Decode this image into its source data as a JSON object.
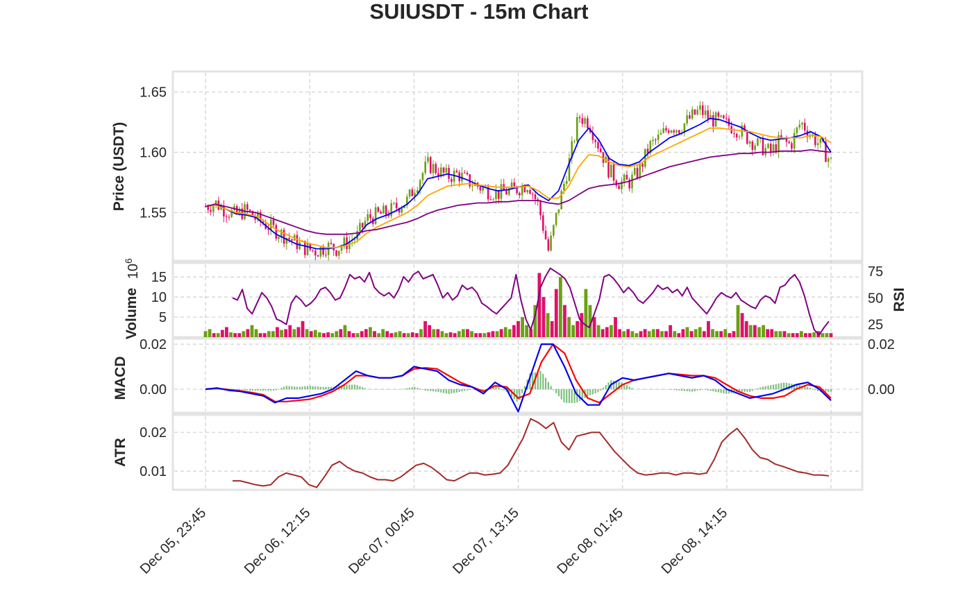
{
  "chart_data": {
    "type": "line",
    "title": "SUIUSDT - 15m Chart",
    "x_ticks": [
      "Dec 05, 23:45",
      "Dec 06, 12:15",
      "Dec 07, 00:45",
      "Dec 07, 13:15",
      "Dec 08, 01:45",
      "Dec 08, 14:15"
    ],
    "grid": true,
    "colors": {
      "up": "#6aa012",
      "down": "#e0106a",
      "ema_fast": "#0000ee",
      "ema_slow": "#ffa500",
      "sma_long": "#800080",
      "rsi": "#800080",
      "macd": "#0000ee",
      "signal": "#ff0000",
      "hist": "#7dbf7d",
      "atr": "#a52a2a"
    },
    "panels": {
      "price": {
        "ylabel": "Price (USDT)",
        "ylim": [
          1.51,
          1.667
        ],
        "yticks": [
          "1.55",
          "1.60",
          "1.65"
        ],
        "series": [
          {
            "role": "close",
            "values": [
              1.555,
              1.558,
              1.552,
              1.548,
              1.552,
              1.545,
              1.54,
              1.535,
              1.53,
              1.525,
              1.52,
              1.518,
              1.522,
              1.52,
              1.525,
              1.53,
              1.545,
              1.548,
              1.55,
              1.555,
              1.56,
              1.575,
              1.59,
              1.585,
              1.58,
              1.582,
              1.576,
              1.572,
              1.568,
              1.566,
              1.568,
              1.57,
              1.574,
              1.556,
              1.518,
              1.555,
              1.59,
              1.63,
              1.625,
              1.605,
              1.585,
              1.575,
              1.575,
              1.585,
              1.605,
              1.612,
              1.622,
              1.62,
              1.628,
              1.635,
              1.628,
              1.625,
              1.622,
              1.618,
              1.61,
              1.605,
              1.6,
              1.61,
              1.606,
              1.625,
              1.615,
              1.605,
              1.592
            ]
          },
          {
            "name": "",
            "role": "ema_fast",
            "values": [
              1.555,
              1.557,
              1.553,
              1.549,
              1.548,
              1.546,
              1.539,
              1.532,
              1.528,
              1.524,
              1.522,
              1.52,
              1.52,
              1.521,
              1.524,
              1.53,
              1.54,
              1.545,
              1.548,
              1.552,
              1.557,
              1.565,
              1.578,
              1.58,
              1.582,
              1.58,
              1.577,
              1.573,
              1.57,
              1.568,
              1.569,
              1.571,
              1.573,
              1.565,
              1.56,
              1.568,
              1.59,
              1.61,
              1.62,
              1.61,
              1.595,
              1.59,
              1.589,
              1.592,
              1.6,
              1.606,
              1.612,
              1.615,
              1.619,
              1.623,
              1.628,
              1.627,
              1.624,
              1.621,
              1.616,
              1.612,
              1.61,
              1.611,
              1.612,
              1.614,
              1.617,
              1.613,
              1.6
            ]
          },
          {
            "name": "",
            "role": "ema_slow",
            "values": [
              1.555,
              1.556,
              1.553,
              1.55,
              1.549,
              1.547,
              1.542,
              1.536,
              1.532,
              1.528,
              1.525,
              1.523,
              1.521,
              1.521,
              1.523,
              1.526,
              1.533,
              1.538,
              1.542,
              1.546,
              1.55,
              1.556,
              1.564,
              1.568,
              1.572,
              1.573,
              1.574,
              1.573,
              1.572,
              1.571,
              1.571,
              1.571,
              1.572,
              1.568,
              1.562,
              1.562,
              1.572,
              1.588,
              1.598,
              1.597,
              1.592,
              1.589,
              1.588,
              1.59,
              1.596,
              1.6,
              1.604,
              1.608,
              1.612,
              1.616,
              1.62,
              1.62,
              1.619,
              1.618,
              1.617,
              1.615,
              1.613,
              1.612,
              1.612,
              1.612,
              1.614,
              1.613,
              1.608
            ]
          },
          {
            "name": "",
            "role": "sma_long",
            "values": [
              1.555,
              1.557,
              1.555,
              1.553,
              1.551,
              1.55,
              1.547,
              1.544,
              1.541,
              1.538,
              1.535,
              1.533,
              1.532,
              1.532,
              1.532,
              1.533,
              1.535,
              1.536,
              1.538,
              1.54,
              1.542,
              1.545,
              1.549,
              1.552,
              1.554,
              1.556,
              1.557,
              1.558,
              1.558,
              1.559,
              1.559,
              1.56,
              1.56,
              1.56,
              1.558,
              1.557,
              1.56,
              1.565,
              1.57,
              1.572,
              1.573,
              1.574,
              1.576,
              1.579,
              1.582,
              1.585,
              1.588,
              1.59,
              1.592,
              1.594,
              1.596,
              1.597,
              1.598,
              1.599,
              1.599,
              1.6,
              1.6,
              1.601,
              1.601,
              1.601,
              1.602,
              1.601,
              1.6
            ]
          }
        ]
      },
      "volume": {
        "ylabel": "Volume",
        "multiplier": "10",
        "exponent": "6",
        "ylim": [
          0,
          18.5
        ],
        "yticks": [
          "5",
          "10",
          "15"
        ],
        "values": [
          1.5,
          2,
          1,
          1,
          1.8,
          2.5,
          1.2,
          1,
          1,
          1.5,
          2,
          3,
          2,
          1,
          1,
          1.5,
          1.5,
          2.5,
          1.8,
          2,
          3,
          2,
          2.5,
          4,
          2,
          1.5,
          1.8,
          1.2,
          1,
          1.2,
          1,
          1.5,
          2,
          3,
          1.5,
          1,
          1,
          1.5,
          2,
          2.5,
          1.5,
          1,
          2,
          1.5,
          1,
          1.2,
          1.5,
          1,
          1,
          1.2,
          1,
          2,
          4,
          3,
          2,
          2,
          1.5,
          1,
          1.2,
          1,
          1.5,
          2,
          2,
          1.5,
          1,
          1,
          1,
          1.2,
          1.5,
          1.5,
          2,
          2.5,
          2,
          3,
          4,
          5,
          3,
          2,
          8,
          16,
          10,
          6,
          4,
          12,
          15,
          8,
          5,
          3,
          4,
          6,
          12,
          8,
          5,
          3,
          2,
          2.5,
          3,
          5,
          2,
          1.5,
          2,
          1.5,
          1,
          1.5,
          2,
          1.5,
          2,
          2,
          1.5,
          1.5,
          3,
          1.5,
          1,
          2,
          2.5,
          1.5,
          2,
          2.5,
          1.5,
          4,
          2,
          1.5,
          1.5,
          2,
          1,
          1.5,
          8,
          6,
          4,
          3,
          3,
          2.5,
          3,
          2,
          2,
          1.5,
          1.5,
          1.5,
          1,
          1,
          1,
          1.5,
          1,
          1,
          1.2,
          1.5,
          1,
          1,
          1
        ]
      },
      "rsi": {
        "ylabel": "RSI",
        "ylim": [
          13,
          83
        ],
        "yticks": [
          "25",
          "50",
          "75"
        ],
        "values": [
          50,
          48,
          58,
          40,
          35,
          45,
          55,
          50,
          42,
          30,
          28,
          25,
          45,
          52,
          48,
          42,
          45,
          50,
          58,
          60,
          55,
          48,
          50,
          60,
          72,
          68,
          70,
          65,
          74,
          60,
          55,
          52,
          55,
          50,
          58,
          70,
          65,
          72,
          75,
          68,
          70,
          72,
          62,
          50,
          55,
          48,
          52,
          62,
          58,
          60,
          55,
          45,
          42,
          38,
          35,
          40,
          45,
          50,
          72,
          48,
          30,
          20,
          35,
          60,
          70,
          78,
          75,
          72,
          68,
          60,
          45,
          30,
          25,
          22,
          35,
          48,
          70,
          72,
          68,
          62,
          55,
          60,
          55,
          48,
          45,
          50,
          55,
          62,
          58,
          60,
          55,
          58,
          52,
          60,
          50,
          45,
          40,
          35,
          42,
          50,
          55,
          52,
          50,
          55,
          48,
          45,
          42,
          40,
          48,
          52,
          50,
          45,
          60,
          62,
          68,
          72,
          65,
          52,
          35,
          20,
          15,
          22,
          28
        ]
      },
      "macd": {
        "ylabel": "MACD",
        "ylim": [
          -0.0105,
          0.0225
        ],
        "yticks": [
          "0.00",
          "0.02"
        ],
        "right_yticks": [
          "0.00",
          "0.02"
        ],
        "macd": [
          0,
          0.0005,
          -0.0005,
          -0.001,
          -0.002,
          -0.003,
          -0.006,
          -0.004,
          -0.004,
          -0.003,
          -0.002,
          0,
          0.004,
          0.008,
          0.006,
          0.005,
          0.005,
          0.006,
          0.01,
          0.009,
          0.008,
          0.004,
          0.002,
          0.001,
          -0.002,
          0.003,
          0,
          -0.01,
          0.005,
          0.02,
          0.02,
          0.01,
          -0.002,
          -0.007,
          -0.007,
          0.002,
          0.005,
          0.004,
          0.005,
          0.006,
          0.007,
          0.006,
          0.005,
          0.006,
          0.004,
          0,
          -0.002,
          -0.004,
          -0.003,
          -0.002,
          0,
          0.002,
          0.003,
          0,
          -0.005
        ],
        "signal": [
          0,
          0.0003,
          -0.0002,
          -0.0008,
          -0.0015,
          -0.0025,
          -0.0055,
          -0.0055,
          -0.005,
          -0.0045,
          -0.003,
          -0.001,
          0.002,
          0.006,
          0.006,
          0.005,
          0.005,
          0.006,
          0.009,
          0.0095,
          0.009,
          0.006,
          0.003,
          0.001,
          -0.001,
          0.0015,
          0.001,
          -0.004,
          -0.002,
          0.012,
          0.02,
          0.016,
          0.004,
          -0.004,
          -0.006,
          -0.002,
          0.002,
          0.004,
          0.005,
          0.006,
          0.007,
          0.0065,
          0.006,
          0.006,
          0.005,
          0.002,
          -0.001,
          -0.003,
          -0.004,
          -0.004,
          -0.003,
          0,
          0.002,
          0.001,
          -0.004
        ],
        "hist": [
          0,
          0.0002,
          -0.0003,
          -0.0002,
          -0.0005,
          -0.0005,
          -0.0005,
          0.0015,
          0.001,
          0.0015,
          0.001,
          0.001,
          0.002,
          0.002,
          0,
          0,
          0,
          0,
          0.001,
          -0.0005,
          -0.001,
          -0.002,
          -0.001,
          0,
          -0.001,
          0.0015,
          -0.001,
          -0.006,
          0.007,
          0.008,
          0,
          -0.006,
          -0.006,
          -0.003,
          -0.001,
          0.004,
          0.003,
          0,
          0,
          0,
          0,
          -0.0005,
          -0.001,
          0,
          -0.001,
          -0.002,
          -0.001,
          -0.001,
          0.001,
          0.002,
          0.003,
          0.002,
          0.001,
          -0.001,
          -0.001
        ]
      },
      "atr": {
        "ylabel": "ATR",
        "ylim": [
          0.0052,
          0.0245
        ],
        "yticks": [
          "0.01",
          "0.02"
        ],
        "values": [
          0.0075,
          0.0075,
          0.007,
          0.0065,
          0.0062,
          0.0065,
          0.0085,
          0.0095,
          0.009,
          0.0085,
          0.0065,
          0.0058,
          0.0085,
          0.0115,
          0.0125,
          0.011,
          0.01,
          0.0095,
          0.0085,
          0.0078,
          0.0078,
          0.0075,
          0.0085,
          0.01,
          0.0115,
          0.012,
          0.011,
          0.0095,
          0.0078,
          0.0075,
          0.0085,
          0.0095,
          0.0095,
          0.009,
          0.0092,
          0.0095,
          0.0115,
          0.015,
          0.0185,
          0.0235,
          0.0225,
          0.021,
          0.0225,
          0.0175,
          0.0155,
          0.019,
          0.0195,
          0.02,
          0.02,
          0.0175,
          0.015,
          0.013,
          0.011,
          0.0095,
          0.009,
          0.0092,
          0.0095,
          0.0095,
          0.009,
          0.0095,
          0.0095,
          0.0092,
          0.0095,
          0.013,
          0.0175,
          0.0195,
          0.021,
          0.0185,
          0.0155,
          0.0135,
          0.013,
          0.0118,
          0.0112,
          0.0105,
          0.0098,
          0.0095,
          0.009,
          0.009,
          0.0088
        ]
      }
    }
  }
}
